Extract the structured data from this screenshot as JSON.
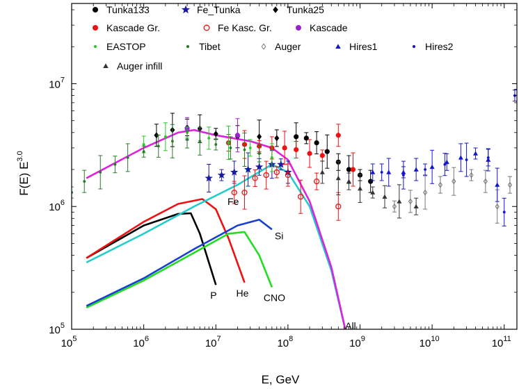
{
  "chart_data": {
    "type": "scatter",
    "xlabel": "E, GeV",
    "ylabel": "F(E) E^3.0",
    "ylabel_base": "F(E) E",
    "ylabel_exp": "3.0",
    "x_scale": "log",
    "y_scale": "log",
    "xlim": [
      100000,
      150000000000
    ],
    "ylim": [
      100000,
      45000000
    ],
    "x_ticks": [
      {
        "value": 100000,
        "base": "10",
        "exp": "5"
      },
      {
        "value": 1000000,
        "base": "10",
        "exp": "6"
      },
      {
        "value": 10000000,
        "base": "10",
        "exp": "7"
      },
      {
        "value": 100000000,
        "base": "10",
        "exp": "8"
      },
      {
        "value": 1000000000,
        "base": "10",
        "exp": "9"
      },
      {
        "value": 10000000000,
        "base": "10",
        "exp": "10"
      },
      {
        "value": 100000000000,
        "base": "10",
        "exp": "11"
      }
    ],
    "y_ticks": [
      {
        "value": 100000,
        "base": "10",
        "exp": "5"
      },
      {
        "value": 1000000,
        "base": "10",
        "exp": "6"
      },
      {
        "value": 10000000,
        "base": "10",
        "exp": "7"
      }
    ],
    "legend_position": "top-left",
    "legend": [
      {
        "name": "Tunka133",
        "marker": "circle",
        "color": "#000000"
      },
      {
        "name": "Fe_Tunka",
        "marker": "star",
        "color": "#1a1aa0"
      },
      {
        "name": "Tunka25",
        "marker": "diamond",
        "color": "#000000"
      },
      {
        "name": "Kascade Gr.",
        "marker": "circle",
        "color": "#ee1111"
      },
      {
        "name": "Fe Kasc. Gr.",
        "marker": "open-circle",
        "color": "#ee1111"
      },
      {
        "name": "Kascade",
        "marker": "circle",
        "color": "#9922cc"
      },
      {
        "name": "EASTOP",
        "marker": "small-dot",
        "color": "#22cc22"
      },
      {
        "name": "Tibet",
        "marker": "small-dot",
        "color": "#2a7a2a"
      },
      {
        "name": "Auger",
        "marker": "open-diamond",
        "color": "#777777"
      },
      {
        "name": "Hires1",
        "marker": "triangle",
        "color": "#1515cc"
      },
      {
        "name": "Hires2",
        "marker": "small-dot",
        "color": "#1515cc"
      },
      {
        "name": "Auger infill",
        "marker": "triangle",
        "color": "#333333"
      }
    ],
    "curves": [
      {
        "label": "P",
        "color": "#000000",
        "x": [
          160000,
          1000000,
          3000000,
          4500000,
          6000000,
          10000000
        ],
        "y": [
          380000,
          700000,
          870000,
          880000,
          600000,
          230000
        ]
      },
      {
        "label": "He",
        "color": "#ee1111",
        "x": [
          160000,
          1000000,
          3000000,
          6500000,
          10000000,
          15000000,
          25000000
        ],
        "y": [
          380000,
          750000,
          1050000,
          1150000,
          950000,
          550000,
          240000
        ]
      },
      {
        "label": "CNO",
        "color": "#22dd22",
        "x": [
          160000,
          1000000,
          5000000,
          15000000,
          25000000,
          40000000,
          60000000
        ],
        "y": [
          150000,
          250000,
          420000,
          600000,
          620000,
          400000,
          220000
        ]
      },
      {
        "label": "Si",
        "color": "#1a3fd0",
        "x": [
          160000,
          1000000,
          5000000,
          20000000,
          40000000,
          60000000
        ],
        "y": [
          155000,
          260000,
          450000,
          700000,
          780000,
          650000
        ]
      },
      {
        "label": "Fe",
        "color": "#22cccc",
        "x": [
          160000,
          1000000,
          5000000,
          20000000,
          60000000,
          100000000,
          200000000,
          400000000,
          650000000
        ],
        "y": [
          350000,
          600000,
          1000000,
          1500000,
          2200000,
          1900000,
          1000000,
          300000,
          90000
        ]
      },
      {
        "label": "All",
        "color": "#dd22dd",
        "x": [
          160000,
          1000000,
          3000000,
          5000000,
          10000000,
          30000000,
          60000000,
          100000000,
          200000000,
          400000000,
          650000000
        ],
        "y": [
          1700000,
          3000000,
          4000000,
          4200000,
          3800000,
          3400000,
          3000000,
          2400000,
          1100000,
          320000,
          90000
        ]
      }
    ],
    "series": [
      {
        "name": "Tunka133",
        "color": "#000000",
        "marker": "circle",
        "x": [
          130000000,
          180000000,
          250000000,
          350000000,
          500000000,
          700000000,
          1000000000,
          1400000000
        ],
        "y": [
          3700000,
          3600000,
          3300000,
          2800000,
          2300000,
          2000000,
          1800000,
          1600000
        ]
      },
      {
        "name": "Tunka25",
        "color": "#000000",
        "marker": "diamond",
        "x": [
          1500000,
          2500000,
          4000000,
          6000000,
          10000000,
          20000000,
          40000000,
          70000000
        ],
        "y": [
          3800000,
          4200000,
          4400000,
          4300000,
          3900000,
          3700000,
          3700000,
          3600000
        ]
      },
      {
        "name": "Fe_Tunka",
        "color": "#1a1aa0",
        "marker": "star",
        "x": [
          8000000,
          12000000,
          18000000,
          28000000,
          40000000,
          60000000,
          80000000,
          100000000
        ],
        "y": [
          1700000,
          1800000,
          1900000,
          2000000,
          2100000,
          2200000,
          2200000,
          1900000
        ]
      },
      {
        "name": "Kascade Gr.",
        "color": "#ee1111",
        "marker": "circle",
        "x": [
          15000000,
          25000000,
          40000000,
          60000000,
          90000000,
          130000000,
          200000000,
          300000000,
          500000000,
          800000000
        ],
        "y": [
          3300000,
          3200000,
          3100000,
          3000000,
          3000000,
          2900000,
          2700000,
          2600000,
          3800000,
          2000000
        ]
      },
      {
        "name": "Fe Kasc. Gr.",
        "color": "#ee1111",
        "marker": "open-circle",
        "x": [
          18000000,
          25000000,
          35000000,
          50000000,
          70000000,
          100000000,
          150000000,
          250000000,
          500000000
        ],
        "y": [
          1300000,
          1300000,
          1700000,
          1800000,
          1900000,
          1800000,
          1200000,
          1600000,
          1000000
        ]
      },
      {
        "name": "Kascade",
        "color": "#9922cc",
        "marker": "circle",
        "x": [
          4000000,
          20000000
        ],
        "y": [
          4300000,
          3800000
        ]
      },
      {
        "name": "EASTOP",
        "color": "#22cc22",
        "marker": "small-dot",
        "x": [
          1000000,
          2000000,
          4000000,
          8000000,
          15000000,
          30000000,
          60000000
        ],
        "y": [
          3200000,
          3700000,
          4000000,
          3600000,
          3300000,
          3000000,
          2500000
        ]
      },
      {
        "name": "Tibet",
        "color": "#2a7a2a",
        "marker": "small-dot",
        "x": [
          100000,
          150000,
          250000,
          400000,
          600000,
          1000000,
          1600000,
          2500000,
          4000000,
          6000000,
          10000000,
          16000000,
          25000000,
          40000000
        ],
        "y": [
          1300000,
          1600000,
          1900000,
          2200000,
          2500000,
          2800000,
          3100000,
          3400000,
          3500000,
          3400000,
          3200000,
          3000000,
          2900000,
          2700000
        ]
      },
      {
        "name": "Auger",
        "color": "#777777",
        "marker": "open-diamond",
        "x": [
          3000000000,
          5000000000,
          8000000000,
          13000000000,
          20000000000,
          35000000000,
          55000000000,
          80000000000,
          120000000000
        ],
        "y": [
          1000000,
          1100000,
          1300000,
          1500000,
          1600000,
          1800000,
          1600000,
          1000000,
          1500000
        ]
      },
      {
        "name": "Hires1",
        "color": "#1515cc",
        "marker": "triangle",
        "x": [
          1500000000,
          2500000000,
          4000000000,
          6000000000,
          10000000000,
          16000000000,
          25000000000,
          40000000000,
          60000000000,
          80000000000
        ],
        "y": [
          1900000,
          1900000,
          1900000,
          2000000,
          2100000,
          2300000,
          2500000,
          2700000,
          2400000,
          1500000
        ]
      },
      {
        "name": "Hires2",
        "color": "#1515cc",
        "marker": "small-dot",
        "x": [
          2000000000,
          4000000000,
          8000000000,
          15000000000,
          30000000000,
          60000000000,
          100000000000,
          140000000000
        ],
        "y": [
          1900000,
          1800000,
          2000000,
          2200000,
          2400000,
          2500000,
          900000,
          8000000
        ]
      },
      {
        "name": "Auger infill",
        "color": "#333333",
        "marker": "triangle",
        "x": [
          300000000,
          500000000,
          700000000,
          1000000000,
          1500000000,
          2200000000,
          3500000000,
          6000000000
        ],
        "y": [
          1900000,
          1700000,
          1600000,
          1400000,
          1300000,
          1200000,
          1100000,
          1000000
        ]
      }
    ]
  }
}
